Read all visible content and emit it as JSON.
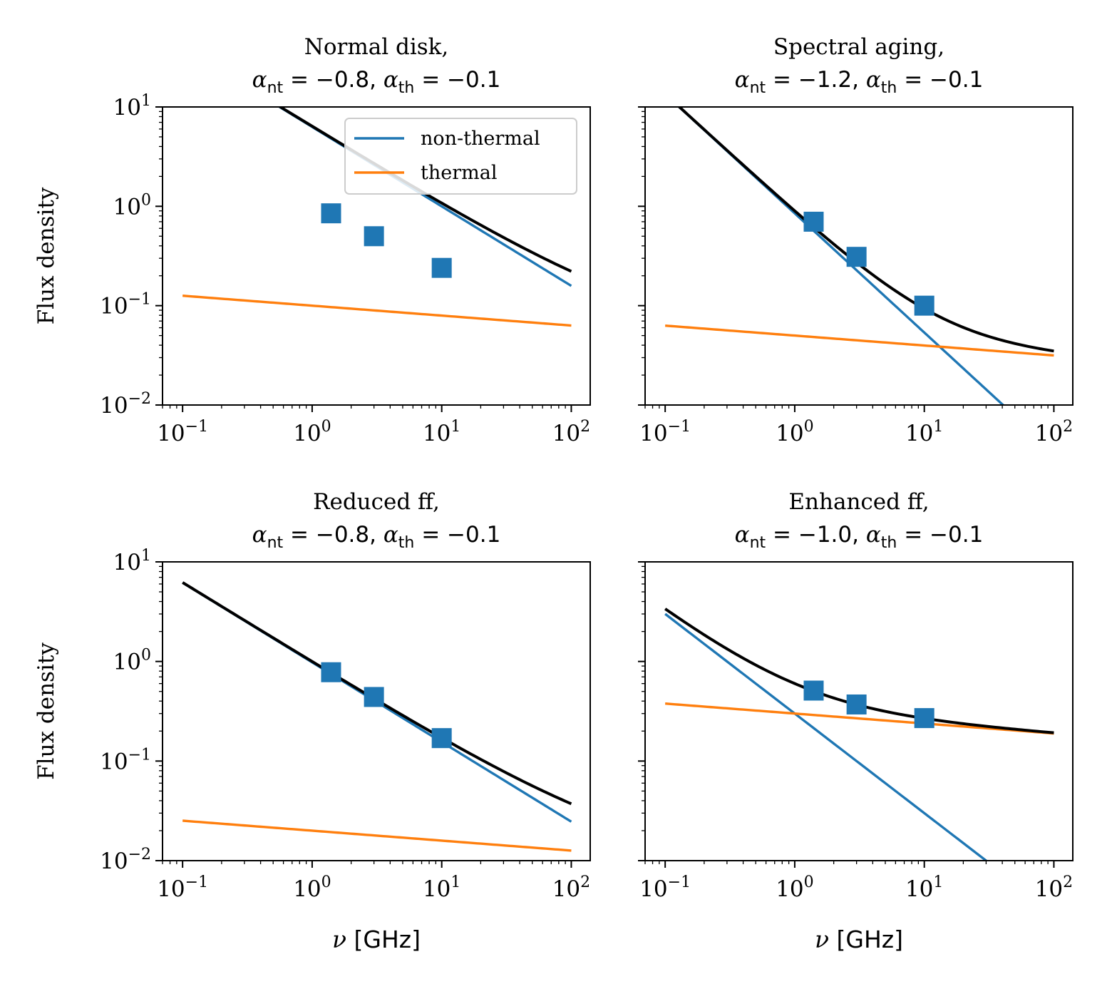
{
  "figure": {
    "ylabel": "Flux density",
    "xlabel_symbol": "ν",
    "xlabel_unit": "[GHz]",
    "colors": {
      "non_thermal": "#1f77b4",
      "thermal": "#ff7f0e",
      "total": "#000000",
      "markers": "#1f77b4"
    },
    "legend": {
      "entries": [
        "non-thermal",
        "thermal"
      ],
      "placement": "upper-right of first panel"
    }
  },
  "chart_data": [
    {
      "type": "line",
      "title_line1": "Normal disk,",
      "alpha_nt": "−0.8",
      "alpha_th": "−0.1",
      "xscale": "log",
      "yscale": "log",
      "xlim": [
        0.07,
        140
      ],
      "ylim": [
        0.01,
        10
      ],
      "xticks": [
        0.1,
        1,
        10,
        100
      ],
      "yticks": [
        0.01,
        0.1,
        1,
        10
      ],
      "show_ytick_labels": true,
      "series": [
        {
          "name": "non-thermal",
          "A": 6.3,
          "alpha": -0.8
        },
        {
          "name": "thermal",
          "A": 0.1,
          "alpha": -0.1
        },
        {
          "name": "total",
          "sum": true
        }
      ],
      "points": [
        {
          "x": 1.4,
          "y": 0.85
        },
        {
          "x": 3.0,
          "y": 0.5
        },
        {
          "x": 10.0,
          "y": 0.24
        }
      ],
      "show_legend": true,
      "show_xlabel": false
    },
    {
      "type": "line",
      "title_line1": "Spectral aging,",
      "alpha_nt": "−1.2",
      "alpha_th": "−0.1",
      "xscale": "log",
      "yscale": "log",
      "xlim": [
        0.07,
        140
      ],
      "ylim": [
        0.01,
        10
      ],
      "xticks": [
        0.1,
        1,
        10,
        100
      ],
      "yticks": [
        0.01,
        0.1,
        1,
        10
      ],
      "show_ytick_labels": false,
      "series": [
        {
          "name": "non-thermal",
          "A": 0.85,
          "alpha": -1.2
        },
        {
          "name": "thermal",
          "A": 0.05,
          "alpha": -0.1
        },
        {
          "name": "total",
          "sum": true
        }
      ],
      "points": [
        {
          "x": 1.4,
          "y": 0.7
        },
        {
          "x": 3.0,
          "y": 0.31
        },
        {
          "x": 10.0,
          "y": 0.1
        }
      ],
      "show_legend": false,
      "show_xlabel": false
    },
    {
      "type": "line",
      "title_line1": "Reduced ff,",
      "alpha_nt": "−0.8",
      "alpha_th": "−0.1",
      "xscale": "log",
      "yscale": "log",
      "xlim": [
        0.07,
        140
      ],
      "ylim": [
        0.01,
        10
      ],
      "xticks": [
        0.1,
        1,
        10,
        100
      ],
      "yticks": [
        0.01,
        0.1,
        1,
        10
      ],
      "show_ytick_labels": true,
      "series": [
        {
          "name": "non-thermal",
          "A": 0.98,
          "alpha": -0.8
        },
        {
          "name": "thermal",
          "A": 0.02,
          "alpha": -0.1
        },
        {
          "name": "total",
          "sum": true
        }
      ],
      "points": [
        {
          "x": 1.4,
          "y": 0.78
        },
        {
          "x": 3.0,
          "y": 0.44
        },
        {
          "x": 10.0,
          "y": 0.17
        }
      ],
      "show_legend": false,
      "show_xlabel": true
    },
    {
      "type": "line",
      "title_line1": "Enhanced ff,",
      "alpha_nt": "−1.0",
      "alpha_th": "−0.1",
      "xscale": "log",
      "yscale": "log",
      "xlim": [
        0.07,
        140
      ],
      "ylim": [
        0.01,
        10
      ],
      "xticks": [
        0.1,
        1,
        10,
        100
      ],
      "yticks": [
        0.01,
        0.1,
        1,
        10
      ],
      "show_ytick_labels": false,
      "series": [
        {
          "name": "non-thermal",
          "A": 0.3,
          "alpha": -1.0
        },
        {
          "name": "thermal",
          "A": 0.3,
          "alpha": -0.1
        },
        {
          "name": "total",
          "sum": true
        }
      ],
      "points": [
        {
          "x": 1.4,
          "y": 0.51
        },
        {
          "x": 3.0,
          "y": 0.37
        },
        {
          "x": 10.0,
          "y": 0.27
        }
      ],
      "show_legend": false,
      "show_xlabel": true
    }
  ]
}
